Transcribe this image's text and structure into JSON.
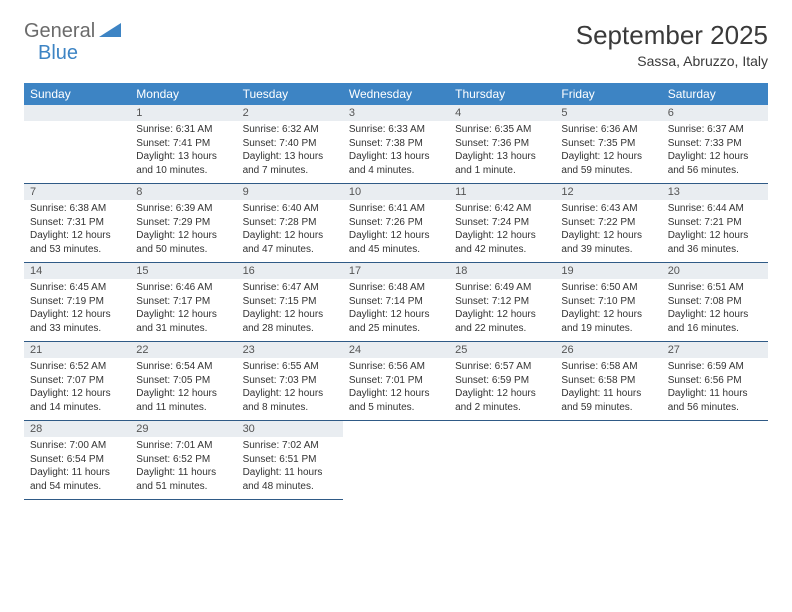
{
  "colors": {
    "header_bg": "#3d84c4",
    "header_text": "#ffffff",
    "daynum_bg": "#e9edf1",
    "daynum_text": "#555555",
    "body_text": "#333333",
    "row_border": "#2f5a86",
    "logo_gray": "#6b6b6b",
    "logo_blue": "#3d84c4",
    "page_bg": "#ffffff"
  },
  "logo": {
    "part1": "General",
    "part2": "Blue"
  },
  "title": "September 2025",
  "location": "Sassa, Abruzzo, Italy",
  "weekdays": [
    "Sunday",
    "Monday",
    "Tuesday",
    "Wednesday",
    "Thursday",
    "Friday",
    "Saturday"
  ],
  "font": {
    "title_size": 26,
    "location_size": 14,
    "weekday_size": 12,
    "daynum_size": 11,
    "body_size": 10
  },
  "weeks": [
    [
      null,
      {
        "n": "1",
        "sunrise": "6:31 AM",
        "sunset": "7:41 PM",
        "daylight": "13 hours and 10 minutes."
      },
      {
        "n": "2",
        "sunrise": "6:32 AM",
        "sunset": "7:40 PM",
        "daylight": "13 hours and 7 minutes."
      },
      {
        "n": "3",
        "sunrise": "6:33 AM",
        "sunset": "7:38 PM",
        "daylight": "13 hours and 4 minutes."
      },
      {
        "n": "4",
        "sunrise": "6:35 AM",
        "sunset": "7:36 PM",
        "daylight": "13 hours and 1 minute."
      },
      {
        "n": "5",
        "sunrise": "6:36 AM",
        "sunset": "7:35 PM",
        "daylight": "12 hours and 59 minutes."
      },
      {
        "n": "6",
        "sunrise": "6:37 AM",
        "sunset": "7:33 PM",
        "daylight": "12 hours and 56 minutes."
      }
    ],
    [
      {
        "n": "7",
        "sunrise": "6:38 AM",
        "sunset": "7:31 PM",
        "daylight": "12 hours and 53 minutes."
      },
      {
        "n": "8",
        "sunrise": "6:39 AM",
        "sunset": "7:29 PM",
        "daylight": "12 hours and 50 minutes."
      },
      {
        "n": "9",
        "sunrise": "6:40 AM",
        "sunset": "7:28 PM",
        "daylight": "12 hours and 47 minutes."
      },
      {
        "n": "10",
        "sunrise": "6:41 AM",
        "sunset": "7:26 PM",
        "daylight": "12 hours and 45 minutes."
      },
      {
        "n": "11",
        "sunrise": "6:42 AM",
        "sunset": "7:24 PM",
        "daylight": "12 hours and 42 minutes."
      },
      {
        "n": "12",
        "sunrise": "6:43 AM",
        "sunset": "7:22 PM",
        "daylight": "12 hours and 39 minutes."
      },
      {
        "n": "13",
        "sunrise": "6:44 AM",
        "sunset": "7:21 PM",
        "daylight": "12 hours and 36 minutes."
      }
    ],
    [
      {
        "n": "14",
        "sunrise": "6:45 AM",
        "sunset": "7:19 PM",
        "daylight": "12 hours and 33 minutes."
      },
      {
        "n": "15",
        "sunrise": "6:46 AM",
        "sunset": "7:17 PM",
        "daylight": "12 hours and 31 minutes."
      },
      {
        "n": "16",
        "sunrise": "6:47 AM",
        "sunset": "7:15 PM",
        "daylight": "12 hours and 28 minutes."
      },
      {
        "n": "17",
        "sunrise": "6:48 AM",
        "sunset": "7:14 PM",
        "daylight": "12 hours and 25 minutes."
      },
      {
        "n": "18",
        "sunrise": "6:49 AM",
        "sunset": "7:12 PM",
        "daylight": "12 hours and 22 minutes."
      },
      {
        "n": "19",
        "sunrise": "6:50 AM",
        "sunset": "7:10 PM",
        "daylight": "12 hours and 19 minutes."
      },
      {
        "n": "20",
        "sunrise": "6:51 AM",
        "sunset": "7:08 PM",
        "daylight": "12 hours and 16 minutes."
      }
    ],
    [
      {
        "n": "21",
        "sunrise": "6:52 AM",
        "sunset": "7:07 PM",
        "daylight": "12 hours and 14 minutes."
      },
      {
        "n": "22",
        "sunrise": "6:54 AM",
        "sunset": "7:05 PM",
        "daylight": "12 hours and 11 minutes."
      },
      {
        "n": "23",
        "sunrise": "6:55 AM",
        "sunset": "7:03 PM",
        "daylight": "12 hours and 8 minutes."
      },
      {
        "n": "24",
        "sunrise": "6:56 AM",
        "sunset": "7:01 PM",
        "daylight": "12 hours and 5 minutes."
      },
      {
        "n": "25",
        "sunrise": "6:57 AM",
        "sunset": "6:59 PM",
        "daylight": "12 hours and 2 minutes."
      },
      {
        "n": "26",
        "sunrise": "6:58 AM",
        "sunset": "6:58 PM",
        "daylight": "11 hours and 59 minutes."
      },
      {
        "n": "27",
        "sunrise": "6:59 AM",
        "sunset": "6:56 PM",
        "daylight": "11 hours and 56 minutes."
      }
    ],
    [
      {
        "n": "28",
        "sunrise": "7:00 AM",
        "sunset": "6:54 PM",
        "daylight": "11 hours and 54 minutes."
      },
      {
        "n": "29",
        "sunrise": "7:01 AM",
        "sunset": "6:52 PM",
        "daylight": "11 hours and 51 minutes."
      },
      {
        "n": "30",
        "sunrise": "7:02 AM",
        "sunset": "6:51 PM",
        "daylight": "11 hours and 48 minutes."
      },
      null,
      null,
      null,
      null
    ]
  ],
  "labels": {
    "sunrise": "Sunrise:",
    "sunset": "Sunset:",
    "daylight": "Daylight:"
  }
}
